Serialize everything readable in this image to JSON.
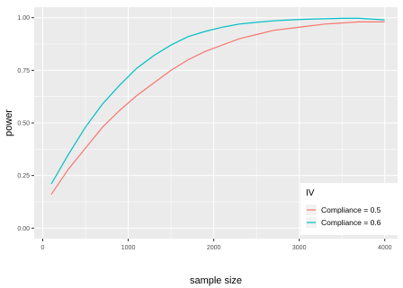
{
  "chart_data": {
    "type": "line",
    "title": "",
    "xlabel": "sample size",
    "ylabel": "power",
    "xlim": [
      -100,
      4150
    ],
    "ylim": [
      -0.05,
      1.05
    ],
    "x_ticks": [
      0,
      1000,
      2000,
      3000,
      4000
    ],
    "y_ticks": [
      0.0,
      0.25,
      0.5,
      0.75,
      1.0
    ],
    "x_tick_labels": [
      "0",
      "1000",
      "2000",
      "3000",
      "4000"
    ],
    "y_tick_labels": [
      "0.00",
      "0.25",
      "0.50",
      "0.75",
      "1.00"
    ],
    "grid": true,
    "legend_position": "bottom-right",
    "legend_title": "IV",
    "series": [
      {
        "name": "Compliance = 0.5",
        "color": "#F8766D",
        "x": [
          100,
          300,
          500,
          700,
          900,
          1100,
          1300,
          1500,
          1700,
          1900,
          2100,
          2300,
          2500,
          2700,
          2900,
          3100,
          3300,
          3500,
          3700,
          4000
        ],
        "y": [
          0.16,
          0.28,
          0.38,
          0.48,
          0.56,
          0.63,
          0.69,
          0.75,
          0.8,
          0.84,
          0.87,
          0.9,
          0.92,
          0.94,
          0.95,
          0.96,
          0.97,
          0.975,
          0.98,
          0.98
        ]
      },
      {
        "name": "Compliance = 0.6",
        "color": "#00BFC4",
        "x": [
          100,
          300,
          500,
          700,
          900,
          1100,
          1300,
          1500,
          1700,
          1900,
          2100,
          2300,
          2500,
          2700,
          2900,
          3100,
          3300,
          3500,
          3700,
          4000
        ],
        "y": [
          0.21,
          0.35,
          0.48,
          0.59,
          0.68,
          0.76,
          0.82,
          0.87,
          0.91,
          0.935,
          0.955,
          0.97,
          0.978,
          0.985,
          0.99,
          0.993,
          0.995,
          0.997,
          0.997,
          0.99
        ]
      }
    ]
  }
}
